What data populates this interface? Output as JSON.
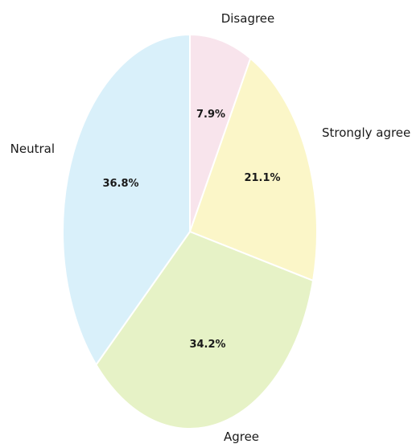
{
  "chart_data": {
    "type": "pie",
    "title": "",
    "slices": [
      {
        "label": "Disagree",
        "value": 7.9,
        "pct_label": "7.9%",
        "color": "#f8e4ec"
      },
      {
        "label": "Strongly agree",
        "value": 21.1,
        "pct_label": "21.1%",
        "color": "#fbf6c8"
      },
      {
        "label": "Agree",
        "value": 34.2,
        "pct_label": "34.2%",
        "color": "#e6f2c6"
      },
      {
        "label": "Neutral",
        "value": 36.8,
        "pct_label": "36.8%",
        "color": "#d9f0fa"
      }
    ]
  }
}
